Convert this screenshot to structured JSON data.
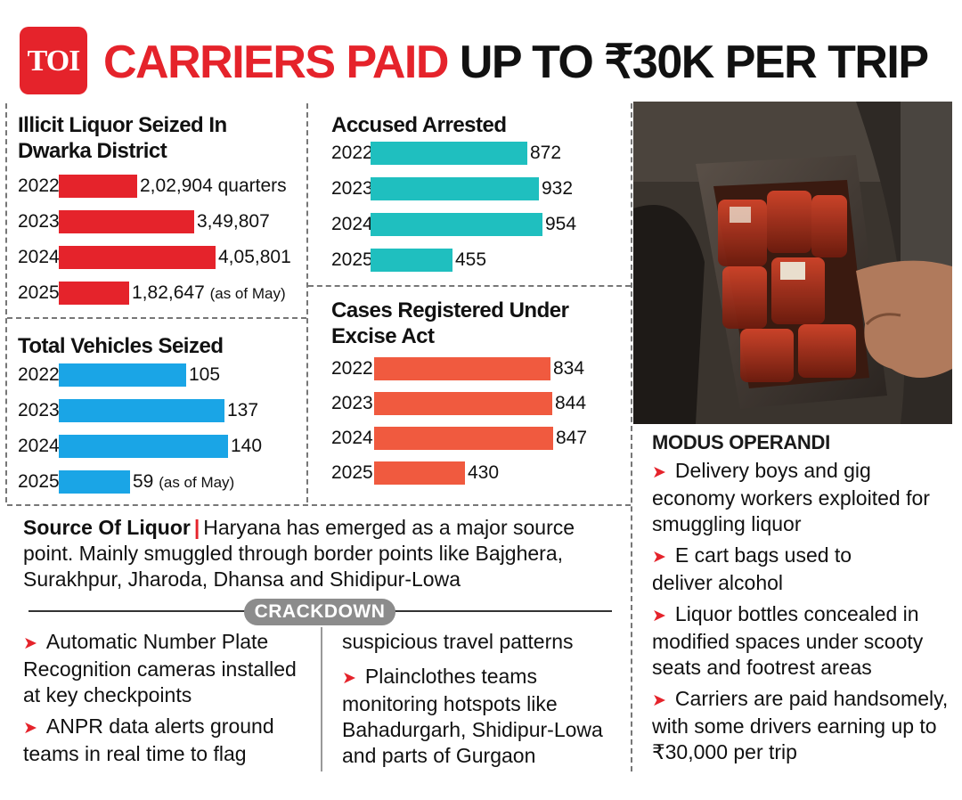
{
  "logo": {
    "text": "TOI"
  },
  "headline": {
    "red": "CARRIERS PAID",
    "black": "UP TO ₹30K PER TRIP"
  },
  "colors": {
    "red": "#e5232b",
    "teal": "#1fbfbf",
    "blue": "#1aa5e6",
    "coral": "#f05a3f",
    "pill": "#8c8c8c"
  },
  "chart_data": [
    {
      "id": "liquor",
      "type": "bar",
      "title_lines": [
        "Illicit Liquor Seized In",
        "Dwarka District"
      ],
      "categories": [
        "2022",
        "2023",
        "2024",
        "2025"
      ],
      "values": [
        202904,
        349807,
        405801,
        182647
      ],
      "labels": [
        "2,02,904",
        "3,49,807",
        "4,05,801",
        "1,82,647"
      ],
      "label_notes": [
        "quarters",
        "",
        "",
        "(as of May)"
      ],
      "color": "#e5232b"
    },
    {
      "id": "vehicles",
      "type": "bar",
      "title_lines": [
        "Total Vehicles Seized"
      ],
      "categories": [
        "2022",
        "2023",
        "2024",
        "2025"
      ],
      "values": [
        105,
        137,
        140,
        59
      ],
      "labels": [
        "105",
        "137",
        "140",
        "59"
      ],
      "label_notes": [
        "",
        "",
        "",
        "(as of May)"
      ],
      "color": "#1aa5e6"
    },
    {
      "id": "arrested",
      "type": "bar",
      "title_lines": [
        "Accused Arrested"
      ],
      "categories": [
        "2022",
        "2023",
        "2024",
        "2025"
      ],
      "values": [
        872,
        932,
        954,
        455
      ],
      "labels": [
        "872",
        "932",
        "954",
        "455"
      ],
      "label_notes": [
        "",
        "",
        "",
        ""
      ],
      "color": "#1fbfbf"
    },
    {
      "id": "cases",
      "type": "bar",
      "title_lines": [
        "Cases Registered Under",
        "Excise Act"
      ],
      "categories": [
        "2022",
        "2023",
        "2024",
        "2025"
      ],
      "values": [
        834,
        844,
        847,
        430
      ],
      "labels": [
        "834",
        "844",
        "847",
        "430"
      ],
      "label_notes": [
        "",
        "",
        "",
        ""
      ],
      "color": "#f05a3f"
    }
  ],
  "modus": {
    "title": "MODUS OPERANDI",
    "items": [
      [
        "Delivery boys and gig",
        "economy workers exploited for",
        "smuggling liquor"
      ],
      [
        "E cart bags used to",
        "deliver alcohol"
      ],
      [
        "Liquor bottles concealed in",
        "modified spaces under scooty",
        "seats and footrest areas"
      ],
      [
        "Carriers are paid handsomely,",
        "with some drivers earning up to",
        "₹30,000 per trip"
      ]
    ]
  },
  "source": {
    "label": "Source Of Liquor",
    "separator": "|",
    "lines": [
      "Haryana has emerged as a major source",
      "point. Mainly smuggled through border points like Bajghera,",
      "Surakhpur, Jharoda, Dhansa and Shidipur-Lowa"
    ]
  },
  "crackdown": {
    "title": "CRACKDOWN",
    "left": [
      [
        "Automatic Number Plate",
        "Recognition cameras installed",
        "at key checkpoints"
      ],
      [
        "ANPR data alerts ground",
        "teams in real time to flag"
      ]
    ],
    "right_continuation": "suspicious travel patterns",
    "right": [
      [
        "Plainclothes teams",
        "monitoring hotspots like",
        "Bahadurgarh, Shidipur-Lowa",
        "and parts of Gurgaon"
      ]
    ]
  }
}
